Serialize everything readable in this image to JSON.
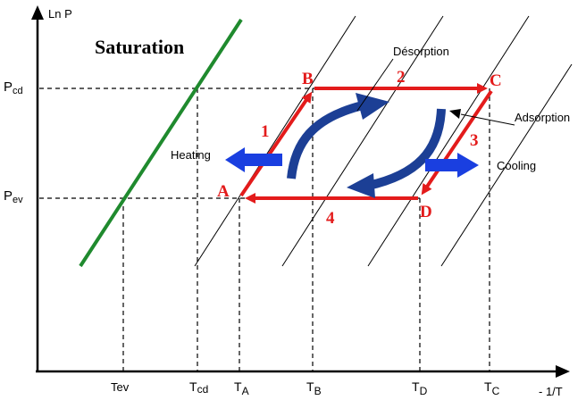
{
  "diagram": {
    "y_axis_label": "Ln P",
    "x_axis_label": "- 1/T",
    "saturation_label": "Saturation",
    "pressure_labels": {
      "condenser": {
        "base": "P",
        "sub": "cd"
      },
      "evaporator": {
        "base": "P",
        "sub": "ev"
      }
    },
    "temperature_labels": [
      {
        "base": "Tev",
        "sub": ""
      },
      {
        "base": "T",
        "sub": "cd"
      },
      {
        "base": "T",
        "sub": "A"
      },
      {
        "base": "T",
        "sub": "B"
      },
      {
        "base": "T",
        "sub": "D"
      },
      {
        "base": "T",
        "sub": "C"
      }
    ],
    "cycle_points": [
      "A",
      "B",
      "C",
      "D"
    ],
    "cycle_steps": [
      "1",
      "2",
      "3",
      "4"
    ],
    "process_labels": {
      "desorption": "Désorption",
      "adsorption": "Adsorption",
      "heating": "Heating",
      "cooling": "Cooling"
    },
    "colors": {
      "cycle": "#e31b1b",
      "saturation_line": "#1f8a2e",
      "flow_arrows": "#1c3f95",
      "heat_arrows": "#1a3fe0"
    }
  }
}
